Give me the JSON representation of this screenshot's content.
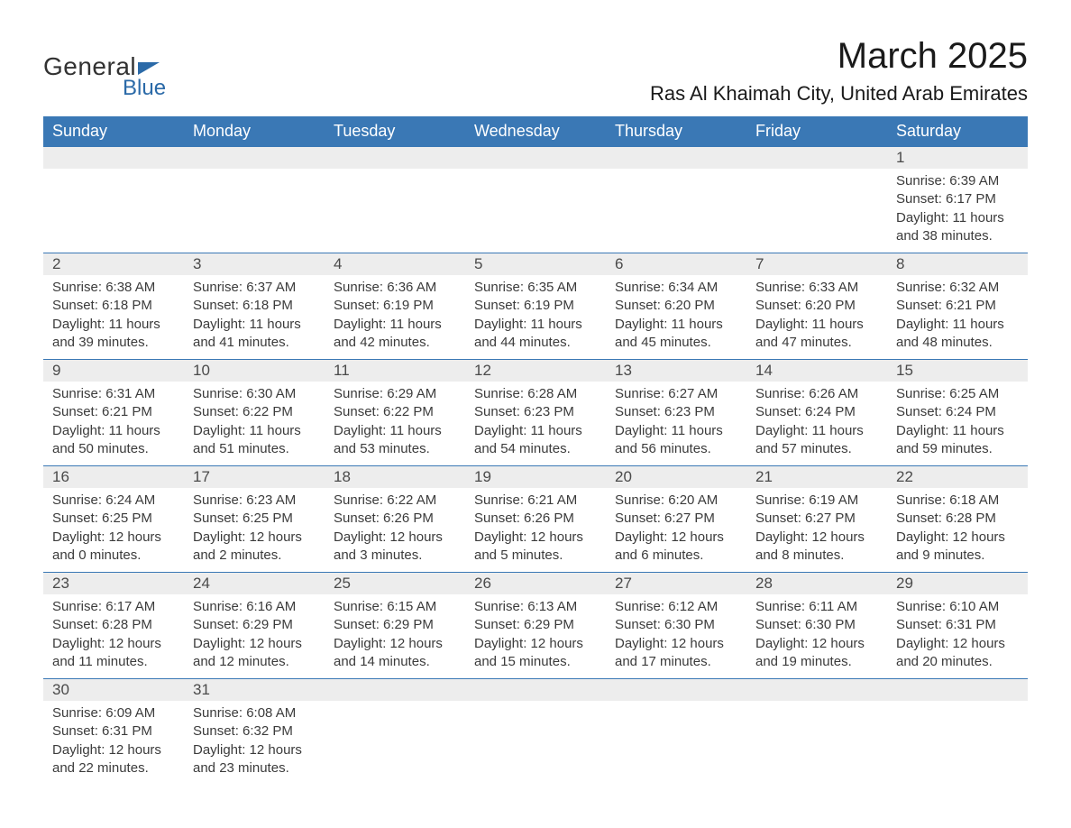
{
  "logo": {
    "text1": "General",
    "text2": "Blue"
  },
  "title": "March 2025",
  "location": "Ras Al Khaimah City, United Arab Emirates",
  "colors": {
    "header_bg": "#3a78b5",
    "header_text": "#ffffff",
    "daynum_bg": "#ededed",
    "border": "#3a78b5",
    "text": "#3b3b3b",
    "logo_blue": "#2b6aa8"
  },
  "fonts": {
    "title_size_pt": 30,
    "location_size_pt": 16,
    "header_size_pt": 14,
    "body_size_pt": 11
  },
  "days_of_week": [
    "Sunday",
    "Monday",
    "Tuesday",
    "Wednesday",
    "Thursday",
    "Friday",
    "Saturday"
  ],
  "weeks": [
    [
      null,
      null,
      null,
      null,
      null,
      null,
      {
        "n": "1",
        "sr": "Sunrise: 6:39 AM",
        "ss": "Sunset: 6:17 PM",
        "d1": "Daylight: 11 hours",
        "d2": "and 38 minutes."
      }
    ],
    [
      {
        "n": "2",
        "sr": "Sunrise: 6:38 AM",
        "ss": "Sunset: 6:18 PM",
        "d1": "Daylight: 11 hours",
        "d2": "and 39 minutes."
      },
      {
        "n": "3",
        "sr": "Sunrise: 6:37 AM",
        "ss": "Sunset: 6:18 PM",
        "d1": "Daylight: 11 hours",
        "d2": "and 41 minutes."
      },
      {
        "n": "4",
        "sr": "Sunrise: 6:36 AM",
        "ss": "Sunset: 6:19 PM",
        "d1": "Daylight: 11 hours",
        "d2": "and 42 minutes."
      },
      {
        "n": "5",
        "sr": "Sunrise: 6:35 AM",
        "ss": "Sunset: 6:19 PM",
        "d1": "Daylight: 11 hours",
        "d2": "and 44 minutes."
      },
      {
        "n": "6",
        "sr": "Sunrise: 6:34 AM",
        "ss": "Sunset: 6:20 PM",
        "d1": "Daylight: 11 hours",
        "d2": "and 45 minutes."
      },
      {
        "n": "7",
        "sr": "Sunrise: 6:33 AM",
        "ss": "Sunset: 6:20 PM",
        "d1": "Daylight: 11 hours",
        "d2": "and 47 minutes."
      },
      {
        "n": "8",
        "sr": "Sunrise: 6:32 AM",
        "ss": "Sunset: 6:21 PM",
        "d1": "Daylight: 11 hours",
        "d2": "and 48 minutes."
      }
    ],
    [
      {
        "n": "9",
        "sr": "Sunrise: 6:31 AM",
        "ss": "Sunset: 6:21 PM",
        "d1": "Daylight: 11 hours",
        "d2": "and 50 minutes."
      },
      {
        "n": "10",
        "sr": "Sunrise: 6:30 AM",
        "ss": "Sunset: 6:22 PM",
        "d1": "Daylight: 11 hours",
        "d2": "and 51 minutes."
      },
      {
        "n": "11",
        "sr": "Sunrise: 6:29 AM",
        "ss": "Sunset: 6:22 PM",
        "d1": "Daylight: 11 hours",
        "d2": "and 53 minutes."
      },
      {
        "n": "12",
        "sr": "Sunrise: 6:28 AM",
        "ss": "Sunset: 6:23 PM",
        "d1": "Daylight: 11 hours",
        "d2": "and 54 minutes."
      },
      {
        "n": "13",
        "sr": "Sunrise: 6:27 AM",
        "ss": "Sunset: 6:23 PM",
        "d1": "Daylight: 11 hours",
        "d2": "and 56 minutes."
      },
      {
        "n": "14",
        "sr": "Sunrise: 6:26 AM",
        "ss": "Sunset: 6:24 PM",
        "d1": "Daylight: 11 hours",
        "d2": "and 57 minutes."
      },
      {
        "n": "15",
        "sr": "Sunrise: 6:25 AM",
        "ss": "Sunset: 6:24 PM",
        "d1": "Daylight: 11 hours",
        "d2": "and 59 minutes."
      }
    ],
    [
      {
        "n": "16",
        "sr": "Sunrise: 6:24 AM",
        "ss": "Sunset: 6:25 PM",
        "d1": "Daylight: 12 hours",
        "d2": "and 0 minutes."
      },
      {
        "n": "17",
        "sr": "Sunrise: 6:23 AM",
        "ss": "Sunset: 6:25 PM",
        "d1": "Daylight: 12 hours",
        "d2": "and 2 minutes."
      },
      {
        "n": "18",
        "sr": "Sunrise: 6:22 AM",
        "ss": "Sunset: 6:26 PM",
        "d1": "Daylight: 12 hours",
        "d2": "and 3 minutes."
      },
      {
        "n": "19",
        "sr": "Sunrise: 6:21 AM",
        "ss": "Sunset: 6:26 PM",
        "d1": "Daylight: 12 hours",
        "d2": "and 5 minutes."
      },
      {
        "n": "20",
        "sr": "Sunrise: 6:20 AM",
        "ss": "Sunset: 6:27 PM",
        "d1": "Daylight: 12 hours",
        "d2": "and 6 minutes."
      },
      {
        "n": "21",
        "sr": "Sunrise: 6:19 AM",
        "ss": "Sunset: 6:27 PM",
        "d1": "Daylight: 12 hours",
        "d2": "and 8 minutes."
      },
      {
        "n": "22",
        "sr": "Sunrise: 6:18 AM",
        "ss": "Sunset: 6:28 PM",
        "d1": "Daylight: 12 hours",
        "d2": "and 9 minutes."
      }
    ],
    [
      {
        "n": "23",
        "sr": "Sunrise: 6:17 AM",
        "ss": "Sunset: 6:28 PM",
        "d1": "Daylight: 12 hours",
        "d2": "and 11 minutes."
      },
      {
        "n": "24",
        "sr": "Sunrise: 6:16 AM",
        "ss": "Sunset: 6:29 PM",
        "d1": "Daylight: 12 hours",
        "d2": "and 12 minutes."
      },
      {
        "n": "25",
        "sr": "Sunrise: 6:15 AM",
        "ss": "Sunset: 6:29 PM",
        "d1": "Daylight: 12 hours",
        "d2": "and 14 minutes."
      },
      {
        "n": "26",
        "sr": "Sunrise: 6:13 AM",
        "ss": "Sunset: 6:29 PM",
        "d1": "Daylight: 12 hours",
        "d2": "and 15 minutes."
      },
      {
        "n": "27",
        "sr": "Sunrise: 6:12 AM",
        "ss": "Sunset: 6:30 PM",
        "d1": "Daylight: 12 hours",
        "d2": "and 17 minutes."
      },
      {
        "n": "28",
        "sr": "Sunrise: 6:11 AM",
        "ss": "Sunset: 6:30 PM",
        "d1": "Daylight: 12 hours",
        "d2": "and 19 minutes."
      },
      {
        "n": "29",
        "sr": "Sunrise: 6:10 AM",
        "ss": "Sunset: 6:31 PM",
        "d1": "Daylight: 12 hours",
        "d2": "and 20 minutes."
      }
    ],
    [
      {
        "n": "30",
        "sr": "Sunrise: 6:09 AM",
        "ss": "Sunset: 6:31 PM",
        "d1": "Daylight: 12 hours",
        "d2": "and 22 minutes."
      },
      {
        "n": "31",
        "sr": "Sunrise: 6:08 AM",
        "ss": "Sunset: 6:32 PM",
        "d1": "Daylight: 12 hours",
        "d2": "and 23 minutes."
      },
      null,
      null,
      null,
      null,
      null
    ]
  ]
}
